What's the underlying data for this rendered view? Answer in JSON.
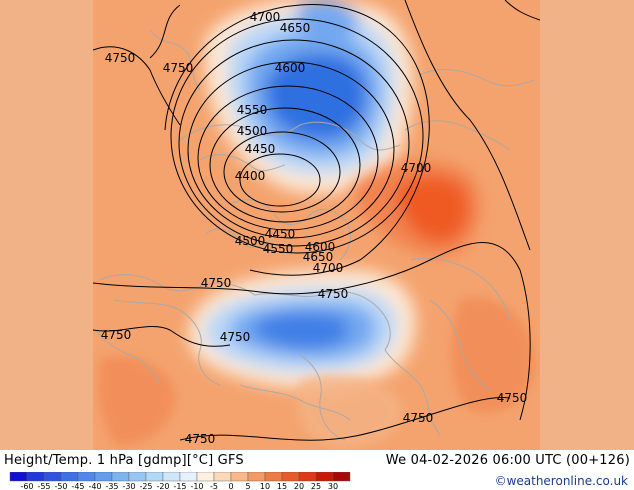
{
  "title": "Height/Temp. 1 hPa [gdmp][°C] GFS",
  "valid_time": "We 04-02-2026 06:00 UTC (00+126)",
  "credit": "©weatheronline.co.uk",
  "colors": {
    "warm_background": "#f4a36e",
    "side_fill": "#f2b287",
    "cold_core": "#2f6fe0",
    "mid_cold": "#73a8f0",
    "light_cold": "#bcd8f7",
    "warm_core": "#ef5a24",
    "coastline": "#a9a9a9",
    "contour": "#000000"
  },
  "contour_labels": [
    "4750",
    "4750",
    "4700",
    "4650",
    "4600",
    "4550",
    "4500",
    "4450",
    "4400",
    "4450",
    "4500",
    "4550",
    "4600",
    "4650",
    "4700",
    "4700",
    "4750",
    "4750",
    "4750",
    "4750",
    "4750",
    "4750",
    "4750"
  ],
  "colorbar": {
    "labels": [
      "-60",
      "-55",
      "-50",
      "-45",
      "-40",
      "-35",
      "-30",
      "-25",
      "-20",
      "-15",
      "-10",
      "-5",
      "0",
      "5",
      "10",
      "15",
      "20",
      "25",
      "30"
    ],
    "colors": [
      "#1010d0",
      "#1f3ad8",
      "#2f55e0",
      "#3f70e6",
      "#5286ea",
      "#659cee",
      "#7eb2f1",
      "#98c6f4",
      "#b3d8f7",
      "#cfe6fa",
      "#e6f1fc",
      "#fdf0e0",
      "#fbd8b8",
      "#f7b88c",
      "#f39a64",
      "#ee7a44",
      "#e85a2a",
      "#de3a18",
      "#c81808",
      "#a80808"
    ]
  }
}
